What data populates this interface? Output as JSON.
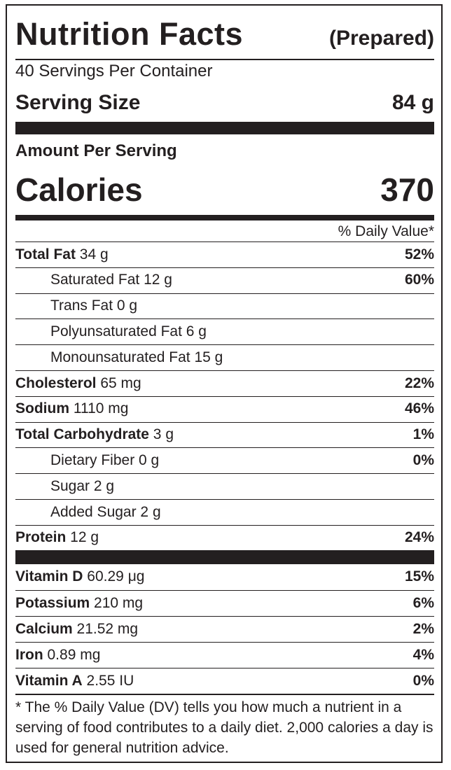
{
  "header": {
    "title": "Nutrition Facts",
    "prepared": "(Prepared)"
  },
  "servings_per_container": "40 Servings Per Container",
  "serving_size": {
    "label": "Serving Size",
    "value": "84 g"
  },
  "amount_per_serving": "Amount Per Serving",
  "calories": {
    "label": "Calories",
    "value": "370"
  },
  "dv_header": "% Daily Value*",
  "nutrients": [
    {
      "name": "Total Fat",
      "amount": " 34 g",
      "dv": "52%",
      "bold": true
    },
    {
      "name": "Saturated Fat 12 g",
      "amount": "",
      "dv": "60%",
      "bold": false
    },
    {
      "name": "Trans Fat 0 g",
      "amount": "",
      "dv": "",
      "bold": false
    },
    {
      "name": "Polyunsaturated Fat 6 g",
      "amount": "",
      "dv": "",
      "bold": false
    },
    {
      "name": "Monounsaturated Fat 15 g",
      "amount": "",
      "dv": "",
      "bold": false
    },
    {
      "name": "Cholesterol",
      "amount": " 65 mg",
      "dv": "22%",
      "bold": true
    },
    {
      "name": "Sodium",
      "amount": " 1110 mg",
      "dv": "46%",
      "bold": true
    },
    {
      "name": "Total Carbohydrate",
      "amount": " 3 g",
      "dv": "1%",
      "bold": true
    },
    {
      "name": "Dietary Fiber 0 g",
      "amount": "",
      "dv": "0%",
      "bold": false
    },
    {
      "name": "Sugar 2 g",
      "amount": "",
      "dv": "",
      "bold": false
    },
    {
      "name": "Added Sugar 2 g",
      "amount": "",
      "dv": "",
      "bold": false
    },
    {
      "name": "Protein",
      "amount": " 12 g",
      "dv": "24%",
      "bold": true
    }
  ],
  "vitamins": [
    {
      "name": "Vitamin D",
      "amount": " 60.29 μg",
      "dv": "15%"
    },
    {
      "name": "Potassium",
      "amount": " 210 mg",
      "dv": "6%"
    },
    {
      "name": "Calcium",
      "amount": " 21.52 mg",
      "dv": "2%"
    },
    {
      "name": "Iron",
      "amount": " 0.89 mg",
      "dv": "4%"
    },
    {
      "name": "Vitamin A",
      "amount": " 2.55 IU",
      "dv": "0%"
    }
  ],
  "footnote": "* The % Daily Value (DV) tells you how much a nutrient in a serving of food contributes to a daily diet. 2,000 calories a day is used for general nutrition advice."
}
